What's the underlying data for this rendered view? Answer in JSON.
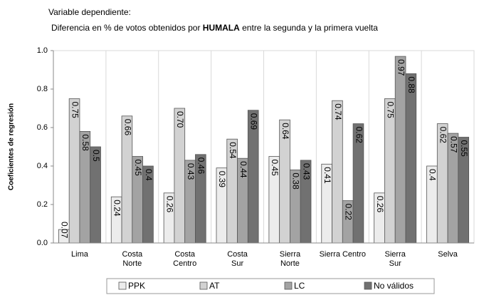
{
  "chart_data": {
    "type": "bar",
    "title": "Variable dependiente:",
    "subtitle": [
      "Diferencia en % de votos obtenidos por ",
      "HUMALA",
      " entre la segunda y la primera vuelta"
    ],
    "ylabel": "Coeficientes de regresión",
    "categories": [
      "Lima",
      "Costa\nNorte",
      "Costa\nCentro",
      "Costa\nSur",
      "Sierra\nNorte",
      "Sierra Centro",
      "Sierra\nSur",
      "Selva"
    ],
    "series": [
      {
        "name": "PPK",
        "color": "#ececec",
        "values": [
          0.07,
          0.24,
          0.26,
          0.39,
          0.45,
          0.41,
          0.26,
          0.4
        ],
        "value_labels": [
          "0.07",
          "0.24",
          "0.26",
          "0.39",
          "0.45",
          "0.41",
          "0.26",
          "0.4"
        ]
      },
      {
        "name": "AT",
        "color": "#d2d2d2",
        "values": [
          0.75,
          0.66,
          0.7,
          0.54,
          0.64,
          0.74,
          0.75,
          0.62
        ],
        "value_labels": [
          "0.75",
          "0.66",
          "0.70",
          "0.54",
          "0.64",
          "0.74",
          "0.75",
          "0.62"
        ]
      },
      {
        "name": "LC",
        "color": "#a3a3a3",
        "values": [
          0.58,
          0.45,
          0.43,
          0.44,
          0.38,
          0.22,
          0.97,
          0.57
        ],
        "value_labels": [
          "0.58",
          "0.45",
          "0.43",
          "0.44",
          "0.38",
          "0.22",
          "0.97",
          "0.57"
        ]
      },
      {
        "name": "No válidos",
        "color": "#717171",
        "values": [
          0.5,
          0.4,
          0.46,
          0.69,
          0.43,
          0.62,
          0.88,
          0.55
        ],
        "value_labels": [
          "0.5",
          "0.4",
          "0.46",
          "0.69",
          "0.43",
          "0.62",
          "0.88",
          "0.55"
        ]
      }
    ],
    "ylim": [
      0,
      1
    ],
    "yticks": [
      {
        "value": 0,
        "label": "0.0"
      },
      0.2,
      0.4,
      0.6,
      0.8,
      {
        "value": 1,
        "label": "1.0"
      }
    ],
    "legend": "bottom"
  }
}
